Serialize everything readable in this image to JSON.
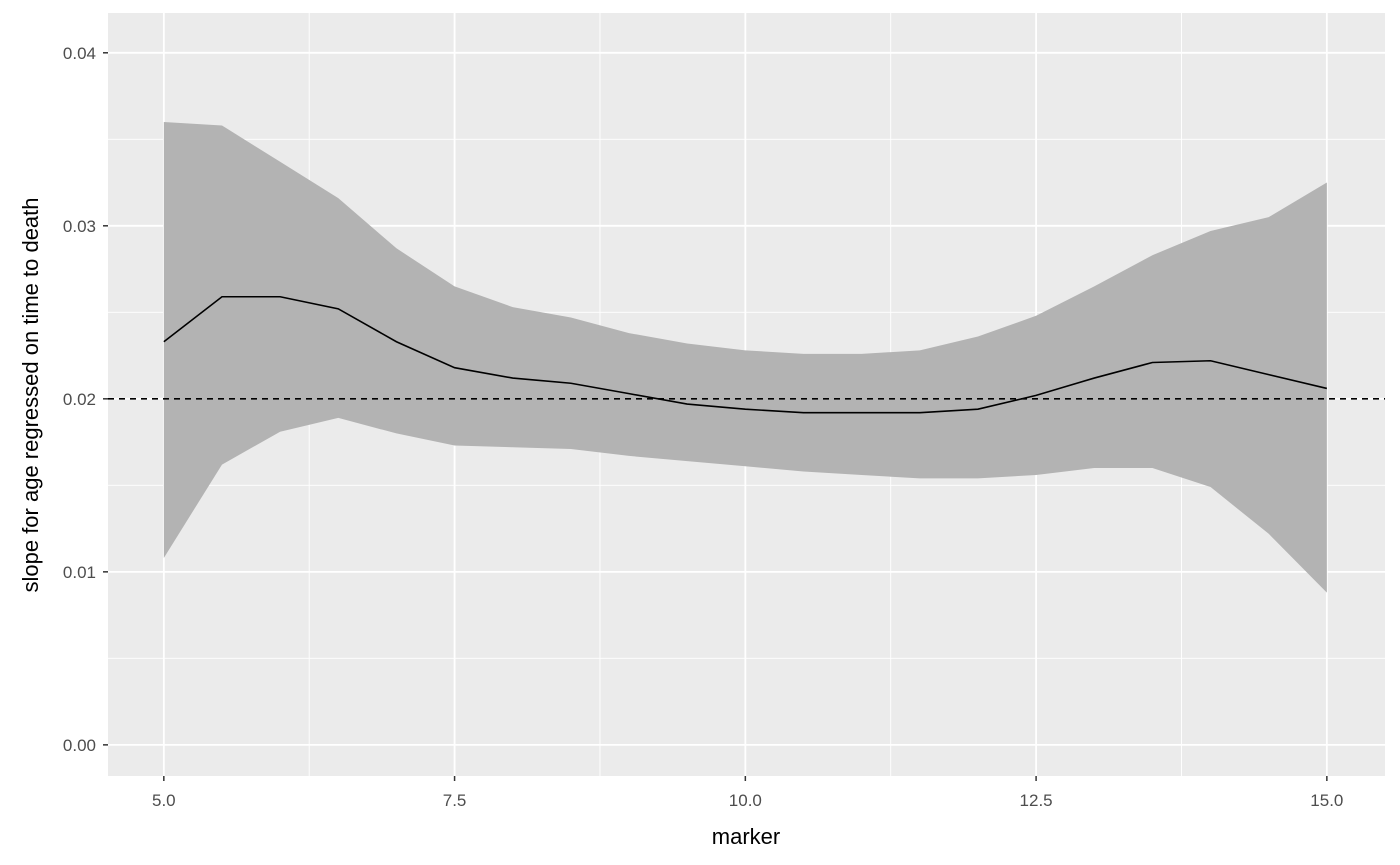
{
  "chart_data": {
    "type": "area",
    "xlabel": "marker",
    "ylabel": "slope for age regressed on time to death",
    "xlim": [
      4.52,
      15.5
    ],
    "ylim": [
      -0.0018,
      0.0423
    ],
    "x_ticks": [
      {
        "value": 5.0,
        "label": "5.0"
      },
      {
        "value": 7.5,
        "label": "7.5"
      },
      {
        "value": 10.0,
        "label": "10.0"
      },
      {
        "value": 12.5,
        "label": "12.5"
      },
      {
        "value": 15.0,
        "label": "15.0"
      }
    ],
    "y_ticks": [
      {
        "value": 0.0,
        "label": "0.00"
      },
      {
        "value": 0.01,
        "label": "0.01"
      },
      {
        "value": 0.02,
        "label": "0.02"
      },
      {
        "value": 0.03,
        "label": "0.03"
      },
      {
        "value": 0.04,
        "label": "0.04"
      }
    ],
    "grid": true,
    "reference_line": {
      "y": 0.02,
      "style": "dashed"
    },
    "x": [
      5.0,
      5.5,
      6.0,
      6.5,
      7.0,
      7.5,
      8.0,
      8.5,
      9.0,
      9.5,
      10.0,
      10.5,
      11.0,
      11.5,
      12.0,
      12.5,
      13.0,
      13.5,
      14.0,
      14.5,
      15.0
    ],
    "estimate": [
      0.0233,
      0.0259,
      0.0259,
      0.0252,
      0.0233,
      0.0218,
      0.0212,
      0.0209,
      0.0203,
      0.0197,
      0.0194,
      0.0192,
      0.0192,
      0.0192,
      0.0194,
      0.0202,
      0.0212,
      0.0221,
      0.0222,
      0.0214,
      0.0206
    ],
    "lower": [
      0.0108,
      0.0162,
      0.0181,
      0.0189,
      0.018,
      0.0173,
      0.0172,
      0.0171,
      0.0167,
      0.0164,
      0.0161,
      0.0158,
      0.0156,
      0.0154,
      0.0154,
      0.0156,
      0.016,
      0.016,
      0.0149,
      0.0122,
      0.0088
    ],
    "upper": [
      0.036,
      0.0358,
      0.0337,
      0.0316,
      0.0287,
      0.0265,
      0.0253,
      0.0247,
      0.0238,
      0.0232,
      0.0228,
      0.0226,
      0.0226,
      0.0228,
      0.0236,
      0.0248,
      0.0265,
      0.0283,
      0.0297,
      0.0305,
      0.0325
    ],
    "colors": {
      "panel": "#ebebeb",
      "grid": "#ffffff",
      "ribbon": "#b3b3b3",
      "line": "#000000"
    }
  }
}
